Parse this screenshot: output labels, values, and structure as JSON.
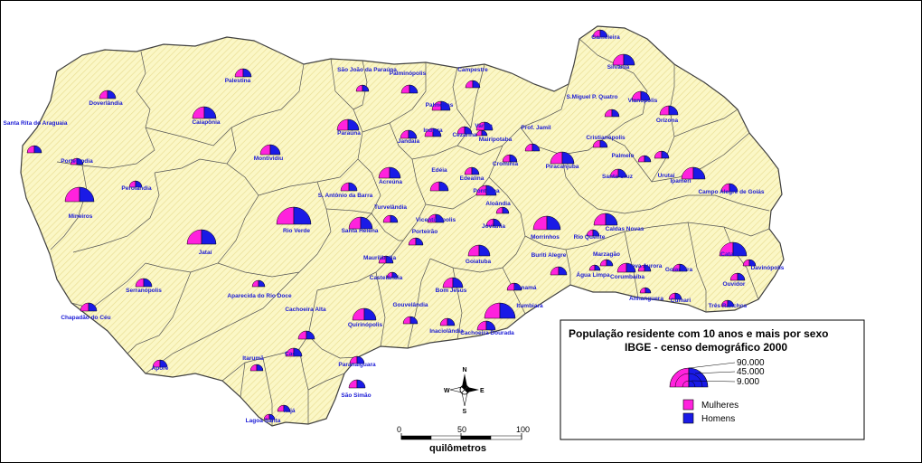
{
  "legend": {
    "title_line1": "População residente com 10 anos e mais por sexo",
    "title_line2": "IBGE - censo demográfico 2000",
    "size_labels": [
      "90.000",
      "45.000",
      "9.000"
    ],
    "categories": [
      {
        "label": "Mulheres",
        "color": "#ff22dd"
      },
      {
        "label": "Homens",
        "color": "#1a1ae6"
      }
    ]
  },
  "scale_bar": {
    "ticks": [
      "0",
      "50",
      "100"
    ],
    "unit": "quilômetros"
  },
  "north_arrow": {
    "n": "N",
    "s": "S",
    "e": "E",
    "w": "W"
  },
  "colors": {
    "region_fill": "#fbf7c6",
    "hatch": "#e9dd92",
    "boundary": "#404040",
    "mulheres": "#ff22dd",
    "homens": "#1a1ae6",
    "label": "#1a1ad6"
  },
  "municipalities": [
    {
      "name": "Gameleira",
      "r": 8
    },
    {
      "name": "Silvânia",
      "r": 12
    },
    {
      "name": "Vianópolis",
      "r": 10
    },
    {
      "name": "S.Miguel P. Quatro",
      "r": 8
    },
    {
      "name": "Orizona",
      "r": 10
    },
    {
      "name": "Palestina",
      "r": 9
    },
    {
      "name": "São João da Paraúna",
      "r": 7
    },
    {
      "name": "Palminópolis",
      "r": 9
    },
    {
      "name": "Campestre",
      "r": 8
    },
    {
      "name": "Doverlândia",
      "r": 9
    },
    {
      "name": "Caiapônia",
      "r": 13
    },
    {
      "name": "Palmeiras",
      "r": 10
    },
    {
      "name": "Santa Rita do Araguaia",
      "r": 8
    },
    {
      "name": "Paraúna",
      "r": 12
    },
    {
      "name": "Jandaia",
      "r": 9
    },
    {
      "name": "Indiara",
      "r": 9
    },
    {
      "name": "Cezarina",
      "r": 8
    },
    {
      "name": "Varjão",
      "r": 6
    },
    {
      "name": "Mairipotaba",
      "r": 9
    },
    {
      "name": "Prof. Jamil",
      "r": 8
    },
    {
      "name": "Cristianópolis",
      "r": 8
    },
    {
      "name": "Montividiu",
      "r": 11
    },
    {
      "name": "Portelândia",
      "r": 7
    },
    {
      "name": "Cromínia",
      "r": 8
    },
    {
      "name": "Piracanjuba",
      "r": 13
    },
    {
      "name": "Palmelo",
      "r": 7
    },
    {
      "name": "Urutaí",
      "r": 8
    },
    {
      "name": "Ipameri",
      "r": 13
    },
    {
      "name": "Perolândia",
      "r": 7
    },
    {
      "name": "Edéia",
      "r": 10
    },
    {
      "name": "Edealina",
      "r": 8
    },
    {
      "name": "Santa Cruz",
      "r": 9
    },
    {
      "name": "Campo Alegre de Goiás",
      "r": 9
    },
    {
      "name": "Mineiros",
      "r": 16
    },
    {
      "name": "Acreúna",
      "r": 12
    },
    {
      "name": "S. Antônio da Barra",
      "r": 9
    },
    {
      "name": "Pontalina",
      "r": 11
    },
    {
      "name": "Aloândia",
      "r": 7
    },
    {
      "name": "Turvelândia",
      "r": 8
    },
    {
      "name": "Vicentinópolis",
      "r": 9
    },
    {
      "name": "Joviânia",
      "r": 8
    },
    {
      "name": "Morrinhos",
      "r": 15
    },
    {
      "name": "Rio Verde",
      "r": 19
    },
    {
      "name": "Santa Helena",
      "r": 13
    },
    {
      "name": "Porteirão",
      "r": 8
    },
    {
      "name": "Caldas Novas",
      "r": 13
    },
    {
      "name": "Rio Quente",
      "r": 7
    },
    {
      "name": "Jataí",
      "r": 16
    },
    {
      "name": "Goiatuba",
      "r": 12
    },
    {
      "name": "Buriti Alegre",
      "r": 9
    },
    {
      "name": "Marzagão",
      "r": 7
    },
    {
      "name": "Catalão",
      "r": 15
    },
    {
      "name": "Maurilândia",
      "r": 8
    },
    {
      "name": "Davinópolis",
      "r": 7
    },
    {
      "name": "Castelândia",
      "r": 6
    },
    {
      "name": "Nova Aurora",
      "r": 7
    },
    {
      "name": "Goiandira",
      "r": 8
    },
    {
      "name": "Água Limpa",
      "r": 6
    },
    {
      "name": "Serranópolis",
      "r": 9
    },
    {
      "name": "Aparecida do Rio Doce",
      "r": 7
    },
    {
      "name": "Bom Jesus",
      "r": 11
    },
    {
      "name": "Panamá",
      "r": 8
    },
    {
      "name": "Corumbaíba",
      "r": 10
    },
    {
      "name": "Ouvidor",
      "r": 8
    },
    {
      "name": "Anhanguera",
      "r": 6
    },
    {
      "name": "Cumari",
      "r": 7
    },
    {
      "name": "Três Ranchos",
      "r": 7
    },
    {
      "name": "Itumbiara",
      "r": 17
    },
    {
      "name": "Chapadão do Céu",
      "r": 9
    },
    {
      "name": "Cachoeira Alta",
      "r": 9
    },
    {
      "name": "Gouvelândia",
      "r": 8
    },
    {
      "name": "Quirinópolis",
      "r": 13
    },
    {
      "name": "Inaciolândia",
      "r": 8
    },
    {
      "name": "Cachoeira Dourada",
      "r": 10
    },
    {
      "name": "Itarumã",
      "r": 7
    },
    {
      "name": "Caçu",
      "r": 9
    },
    {
      "name": "Aporé",
      "r": 8
    },
    {
      "name": "Paranaiguara",
      "r": 8
    },
    {
      "name": "São Simão",
      "r": 9
    },
    {
      "name": "Itajá",
      "r": 7
    },
    {
      "name": "Lagoa Santa",
      "r": 6
    }
  ]
}
